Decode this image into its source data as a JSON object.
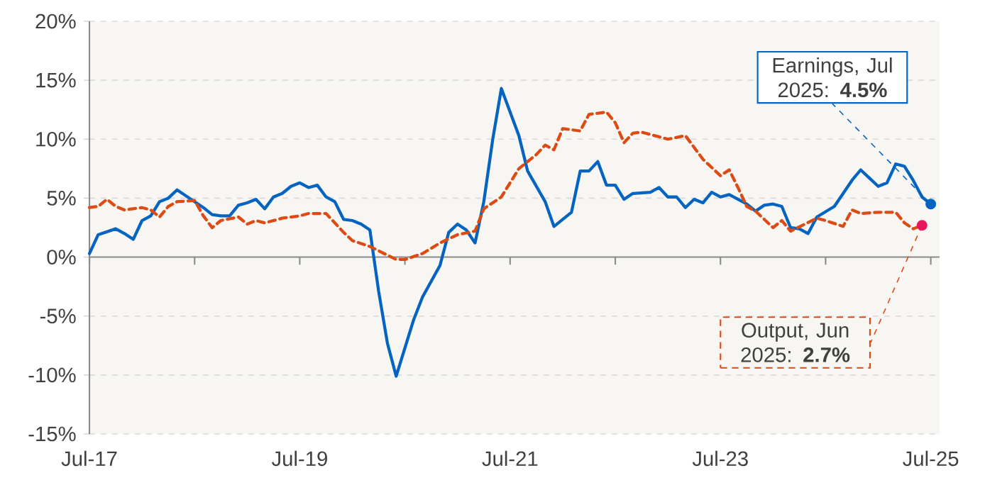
{
  "chart_data": {
    "type": "line",
    "xlim": [
      "2017-07",
      "2025-08"
    ],
    "xticks": [
      {
        "value": "2017-07",
        "label": "Jul-17"
      },
      {
        "value": "2018-07",
        "label": null
      },
      {
        "value": "2019-07",
        "label": "Jul-19"
      },
      {
        "value": "2020-07",
        "label": null
      },
      {
        "value": "2021-07",
        "label": "Jul-21"
      },
      {
        "value": "2022-07",
        "label": null
      },
      {
        "value": "2023-07",
        "label": "Jul-23"
      },
      {
        "value": "2024-07",
        "label": null
      },
      {
        "value": "2025-07",
        "label": "Jul-25"
      }
    ],
    "ylim": [
      -15,
      20
    ],
    "yticks": [
      {
        "value": -15,
        "label": "-15%"
      },
      {
        "value": -10,
        "label": "-10%"
      },
      {
        "value": -5,
        "label": "-5%"
      },
      {
        "value": 0,
        "label": "0%"
      },
      {
        "value": 5,
        "label": "5%"
      },
      {
        "value": 10,
        "label": "10%"
      },
      {
        "value": 15,
        "label": "15%"
      },
      {
        "value": 20,
        "label": "20%"
      }
    ],
    "grid": "y",
    "series": [
      {
        "color": "#0563c1",
        "line_style": "solid",
        "marker": "none",
        "x": [
          "2017-07",
          "2017-08",
          "2017-10",
          "2017-11",
          "2017-12",
          "2018-01",
          "2018-02",
          "2018-03",
          "2018-04",
          "2018-05",
          "2018-07",
          "2018-08",
          "2018-09",
          "2018-10",
          "2018-11",
          "2018-12",
          "2019-01",
          "2019-02",
          "2019-03",
          "2019-04",
          "2019-05",
          "2019-06",
          "2019-07",
          "2019-08",
          "2019-09",
          "2019-10",
          "2019-11",
          "2019-12",
          "2020-01",
          "2020-02",
          "2020-03",
          "2020-04",
          "2020-05",
          "2020-06",
          "2020-08",
          "2020-09",
          "2020-11",
          "2020-12",
          "2021-01",
          "2021-02",
          "2021-03",
          "2021-04",
          "2021-05",
          "2021-06",
          "2021-08",
          "2021-09",
          "2021-11",
          "2021-12",
          "2022-02",
          "2022-03",
          "2022-04",
          "2022-05",
          "2022-06",
          "2022-07",
          "2022-08",
          "2022-09",
          "2022-11",
          "2022-12",
          "2023-01",
          "2023-02",
          "2023-03",
          "2023-04",
          "2023-05",
          "2023-06",
          "2023-07",
          "2023-08",
          "2023-10",
          "2023-11",
          "2023-12",
          "2024-01",
          "2024-02",
          "2024-03",
          "2024-04",
          "2024-05",
          "2024-06",
          "2024-08",
          "2024-09",
          "2024-10",
          "2024-11",
          "2024-12",
          "2025-01",
          "2025-02",
          "2025-03",
          "2025-04",
          "2025-05",
          "2025-06",
          "2025-07"
        ],
        "values": [
          0.3,
          1.9,
          2.4,
          2.0,
          1.5,
          3.1,
          3.5,
          4.7,
          5.0,
          5.7,
          4.7,
          4.2,
          3.6,
          3.5,
          3.5,
          4.4,
          4.6,
          4.9,
          4.1,
          5.1,
          5.4,
          6.0,
          6.3,
          5.9,
          6.1,
          5.1,
          4.7,
          3.2,
          3.1,
          2.8,
          2.3,
          -2.9,
          -7.3,
          -10.1,
          -5.3,
          -3.4,
          -0.7,
          2.1,
          2.8,
          2.3,
          1.2,
          4.7,
          9.9,
          14.3,
          10.3,
          7.3,
          4.7,
          2.6,
          3.8,
          7.3,
          7.3,
          8.1,
          6.1,
          6.1,
          4.9,
          5.4,
          5.5,
          5.9,
          5.1,
          5.1,
          4.2,
          4.9,
          4.6,
          5.5,
          5.1,
          5.3,
          4.5,
          3.9,
          4.4,
          4.5,
          4.3,
          2.5,
          2.4,
          2.0,
          3.4,
          4.3,
          5.4,
          6.5,
          7.4,
          6.7,
          6.0,
          6.3,
          7.9,
          7.7,
          6.5,
          5.1,
          4.5
        ]
      },
      {
        "color": "#dd4b14",
        "line_style": "dashed",
        "marker": "none",
        "x": [
          "2017-07",
          "2017-08",
          "2017-09",
          "2017-10",
          "2017-11",
          "2018-01",
          "2018-02",
          "2018-03",
          "2018-04",
          "2018-05",
          "2018-07",
          "2018-08",
          "2018-09",
          "2018-10",
          "2018-12",
          "2019-01",
          "2019-02",
          "2019-03",
          "2019-05",
          "2019-07",
          "2019-08",
          "2019-10",
          "2019-12",
          "2020-01",
          "2020-03",
          "2020-06",
          "2020-07",
          "2020-09",
          "2020-11",
          "2021-01",
          "2021-03",
          "2021-04",
          "2021-06",
          "2021-08",
          "2021-10",
          "2021-11",
          "2021-12",
          "2022-01",
          "2022-03",
          "2022-04",
          "2022-06",
          "2022-07",
          "2022-08",
          "2022-09",
          "2022-10",
          "2023-01",
          "2023-03",
          "2023-05",
          "2023-07",
          "2023-08",
          "2023-09",
          "2023-10",
          "2023-11",
          "2024-01",
          "2024-02",
          "2024-03",
          "2024-06",
          "2024-07",
          "2024-09",
          "2024-10",
          "2024-11",
          "2025-01",
          "2025-03",
          "2025-04",
          "2025-05",
          "2025-06"
        ],
        "values": [
          4.2,
          4.3,
          4.9,
          4.3,
          4.0,
          4.2,
          4.0,
          3.4,
          4.3,
          4.7,
          4.8,
          3.5,
          2.5,
          3.1,
          3.4,
          2.8,
          3.1,
          2.9,
          3.3,
          3.5,
          3.7,
          3.7,
          2.1,
          1.4,
          0.9,
          -0.2,
          -0.2,
          0.3,
          1.2,
          1.9,
          2.2,
          4.1,
          5.1,
          7.5,
          8.7,
          9.5,
          9.1,
          10.9,
          10.7,
          12.1,
          12.3,
          11.4,
          9.7,
          10.5,
          10.6,
          10.0,
          10.3,
          8.3,
          6.9,
          7.4,
          5.9,
          4.3,
          3.9,
          2.5,
          3.1,
          2.2,
          3.3,
          3.1,
          2.6,
          4.0,
          3.7,
          3.8,
          3.8,
          2.9,
          2.4,
          2.7
        ]
      },
      {
        "type": "scatter",
        "color": "#0563c1",
        "marker": "circle",
        "x": [
          "2025-07"
        ],
        "values": [
          4.5
        ]
      },
      {
        "type": "scatter",
        "color": "#e8175d",
        "marker": "circle",
        "x": [
          "2025-06"
        ],
        "values": [
          2.7
        ]
      }
    ],
    "annotations": [
      {
        "text": "Earnings, Jul 2025: **4.5%**",
        "x": "2025-07",
        "y": 4.5
      },
      {
        "text": "Output, Jun 2025: **2.7%**",
        "x": "2025-06",
        "y": 2.7
      }
    ]
  }
}
